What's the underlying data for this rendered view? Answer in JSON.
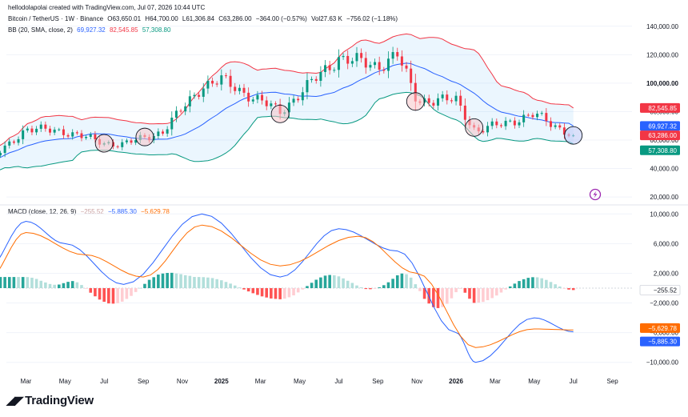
{
  "header": {
    "credit": "hellodolapolai created with TradingView.com, Jul 07, 2026 10:44 UTC",
    "symbol": "Bitcoin / TetherUS · 1W · Binance",
    "open": "O63,650.01",
    "high": "H64,700.00",
    "low": "L61,306.84",
    "close": "C63,286.00",
    "change": "−364.00 (−0.57%)",
    "volume": "Vol27.63 K",
    "volume_change": "−756.02 (−1.18%)",
    "bb_label": "BB (20, SMA, close, 2)",
    "bb_basis": "69,927.32",
    "bb_upper": "82,545.85",
    "bb_lower": "57,308.80",
    "macd_label": "MACD (close, 12, 26, 9)",
    "macd_hist": "−255.52",
    "macd_line": "−5,885.30",
    "macd_signal": "−5,629.78"
  },
  "branding": {
    "logo_text": "TradingView",
    "logo_icon": "tradingview-logo-icon"
  },
  "price_axis": {
    "labels": [
      "140,000.00",
      "120,000.00",
      "100,000.00",
      "80,000.00",
      "60,000.00",
      "40,000.00",
      "20,000.00"
    ],
    "bold_label": "100,000.00",
    "tags": {
      "upper": "82,545.85",
      "basis": "69,927.32",
      "close": "63,286.00",
      "lower": "57,308.80"
    }
  },
  "macd_axis": {
    "labels": [
      "10,000.00",
      "6,000.00",
      "2,000.00",
      "−2,000.00",
      "−6,000.00",
      "−10,000.00"
    ],
    "tags": {
      "hist": "−255.52",
      "signal": "−5,629.78",
      "macd": "−5,885.30"
    }
  },
  "time_axis": {
    "labels": [
      "Mar",
      "May",
      "Jul",
      "Sep",
      "Nov",
      "2025",
      "Mar",
      "May",
      "Jul",
      "Sep",
      "Nov",
      "2026",
      "Mar",
      "May",
      "Jul",
      "Sep"
    ],
    "bold_labels": [
      "2025",
      "2026"
    ]
  },
  "colors": {
    "up": "#089981",
    "down": "#f23645",
    "bb_upper": "#f23645",
    "bb_basis": "#2962ff",
    "bb_lower": "#089981",
    "macd": "#2962ff",
    "signal": "#ff6d00",
    "hist_up_strong": "#26a69a",
    "hist_up_weak": "#b2dfdb",
    "hist_down_strong": "#ff5252",
    "hist_down_weak": "#ffcdd2",
    "highlight_circle": "#f6c5c8",
    "last_circle": "#bcc7f5"
  },
  "chart_data": [
    {
      "type": "candlestick",
      "title": "Bitcoin / TetherUS · 1W · Binance",
      "x_unit": "week",
      "x_range": [
        "2024-01",
        "2026-09"
      ],
      "ylim": [
        15000,
        150000
      ],
      "price_anchors": [
        {
          "x": "2024-01",
          "close": 43000
        },
        {
          "x": "2024-03",
          "close": 68000
        },
        {
          "x": "2024-05",
          "close": 66000
        },
        {
          "x": "2024-07",
          "close": 58000
        },
        {
          "x": "2024-08",
          "close": 57000
        },
        {
          "x": "2024-10",
          "close": 66000
        },
        {
          "x": "2024-12",
          "close": 98000
        },
        {
          "x": "2025-01",
          "close": 102000
        },
        {
          "x": "2025-04",
          "close": 80000
        },
        {
          "x": "2025-07",
          "close": 118000
        },
        {
          "x": "2025-09",
          "close": 112000
        },
        {
          "x": "2025-10",
          "close": 120000
        },
        {
          "x": "2025-11",
          "close": 88000
        },
        {
          "x": "2026-01",
          "close": 88000
        },
        {
          "x": "2026-02",
          "close": 66000
        },
        {
          "x": "2026-05",
          "close": 78000
        },
        {
          "x": "2026-07",
          "close": 63286
        }
      ],
      "bollinger_last": {
        "upper": 82545.85,
        "basis": 69927.32,
        "lower": 57308.8
      },
      "highlight_circles": [
        "2024-07",
        "2024-09",
        "2025-04",
        "2025-11",
        "2026-02",
        "2026-07"
      ]
    },
    {
      "type": "line",
      "title": "MACD (close, 12, 26, 9)",
      "ylim": [
        -11000,
        11000
      ],
      "series": [
        {
          "name": "MACD",
          "points": [
            {
              "x": "2024-01",
              "y": 2500
            },
            {
              "x": "2024-03",
              "y": 9000
            },
            {
              "x": "2024-05",
              "y": 6000
            },
            {
              "x": "2024-08",
              "y": 500
            },
            {
              "x": "2024-12",
              "y": 10000
            },
            {
              "x": "2025-04",
              "y": 1500
            },
            {
              "x": "2025-07",
              "y": 8000
            },
            {
              "x": "2025-10",
              "y": 5000
            },
            {
              "x": "2026-01",
              "y": -6000
            },
            {
              "x": "2026-02",
              "y": -10000
            },
            {
              "x": "2026-05",
              "y": -4000
            },
            {
              "x": "2026-07",
              "y": -5885.3
            }
          ]
        },
        {
          "name": "Signal",
          "points": [
            {
              "x": "2024-01",
              "y": 1000
            },
            {
              "x": "2024-03",
              "y": 7500
            },
            {
              "x": "2024-06",
              "y": 4500
            },
            {
              "x": "2024-09",
              "y": 1500
            },
            {
              "x": "2024-12",
              "y": 8500
            },
            {
              "x": "2025-04",
              "y": 3000
            },
            {
              "x": "2025-08",
              "y": 7000
            },
            {
              "x": "2025-11",
              "y": 2000
            },
            {
              "x": "2026-02",
              "y": -8000
            },
            {
              "x": "2026-05",
              "y": -5500
            },
            {
              "x": "2026-07",
              "y": -5629.78
            }
          ]
        },
        {
          "name": "Histogram",
          "last": -255.52
        }
      ]
    }
  ]
}
